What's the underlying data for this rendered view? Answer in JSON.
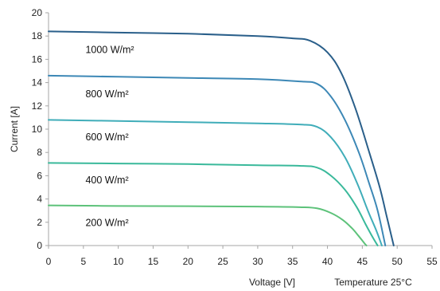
{
  "chart_data": {
    "type": "line",
    "xlabel": "Voltage [V]",
    "ylabel": "Current [A]",
    "annotation": "Temperature 25°C",
    "xlim": [
      0,
      55
    ],
    "ylim": [
      0,
      20
    ],
    "xticks": [
      0,
      5,
      10,
      15,
      20,
      25,
      30,
      35,
      40,
      45,
      50,
      55
    ],
    "yticks": [
      0,
      2,
      4,
      6,
      8,
      10,
      12,
      14,
      16,
      18,
      20
    ],
    "grid": false,
    "series": [
      {
        "name": "1000 W/m²",
        "color": "#2a5f8a",
        "points": [
          [
            0,
            18.4
          ],
          [
            10,
            18.3
          ],
          [
            20,
            18.2
          ],
          [
            30,
            18.0
          ],
          [
            35,
            17.8
          ],
          [
            37.5,
            17.6
          ],
          [
            40,
            16.6
          ],
          [
            42,
            14.8
          ],
          [
            44,
            11.8
          ],
          [
            46,
            8.0
          ],
          [
            47.5,
            5.0
          ],
          [
            48.5,
            2.5
          ],
          [
            49.5,
            0
          ]
        ]
      },
      {
        "name": "800 W/m²",
        "color": "#3d88b6",
        "points": [
          [
            0,
            14.6
          ],
          [
            10,
            14.5
          ],
          [
            20,
            14.4
          ],
          [
            30,
            14.3
          ],
          [
            36,
            14.1
          ],
          [
            38.5,
            13.9
          ],
          [
            40.5,
            12.8
          ],
          [
            42.5,
            10.8
          ],
          [
            44.5,
            8.0
          ],
          [
            46,
            5.3
          ],
          [
            47.2,
            3.0
          ],
          [
            48.3,
            0
          ]
        ]
      },
      {
        "name": "600 W/m²",
        "color": "#40adb9",
        "points": [
          [
            0,
            10.8
          ],
          [
            10,
            10.7
          ],
          [
            20,
            10.6
          ],
          [
            30,
            10.5
          ],
          [
            36,
            10.4
          ],
          [
            38.5,
            10.2
          ],
          [
            40.5,
            9.3
          ],
          [
            42.5,
            7.6
          ],
          [
            44.3,
            5.3
          ],
          [
            45.8,
            3.0
          ],
          [
            47,
            1.3
          ],
          [
            47.8,
            0
          ]
        ]
      },
      {
        "name": "400 W/m²",
        "color": "#3ab99b",
        "points": [
          [
            0,
            7.1
          ],
          [
            10,
            7.05
          ],
          [
            20,
            7.0
          ],
          [
            30,
            6.9
          ],
          [
            36,
            6.85
          ],
          [
            38.5,
            6.7
          ],
          [
            40.5,
            6.0
          ],
          [
            42.5,
            4.8
          ],
          [
            44.2,
            3.3
          ],
          [
            45.5,
            1.8
          ],
          [
            46.5,
            0.7
          ],
          [
            47.2,
            0
          ]
        ]
      },
      {
        "name": "200 W/m²",
        "color": "#5dc27a",
        "points": [
          [
            0,
            3.45
          ],
          [
            10,
            3.4
          ],
          [
            20,
            3.38
          ],
          [
            30,
            3.35
          ],
          [
            36,
            3.3
          ],
          [
            38.5,
            3.2
          ],
          [
            40.5,
            2.8
          ],
          [
            42.2,
            2.2
          ],
          [
            43.5,
            1.5
          ],
          [
            44.5,
            0.8
          ],
          [
            45.3,
            0.2
          ],
          [
            45.6,
            0
          ]
        ]
      }
    ],
    "label_positions": [
      {
        "text_index": 0,
        "x": 5.3,
        "y": 16.8
      },
      {
        "text_index": 1,
        "x": 5.3,
        "y": 13.0
      },
      {
        "text_index": 2,
        "x": 5.3,
        "y": 9.3
      },
      {
        "text_index": 3,
        "x": 5.3,
        "y": 5.6
      },
      {
        "text_index": 4,
        "x": 5.3,
        "y": 1.95
      }
    ],
    "axis_color": "#a6a6a6"
  }
}
